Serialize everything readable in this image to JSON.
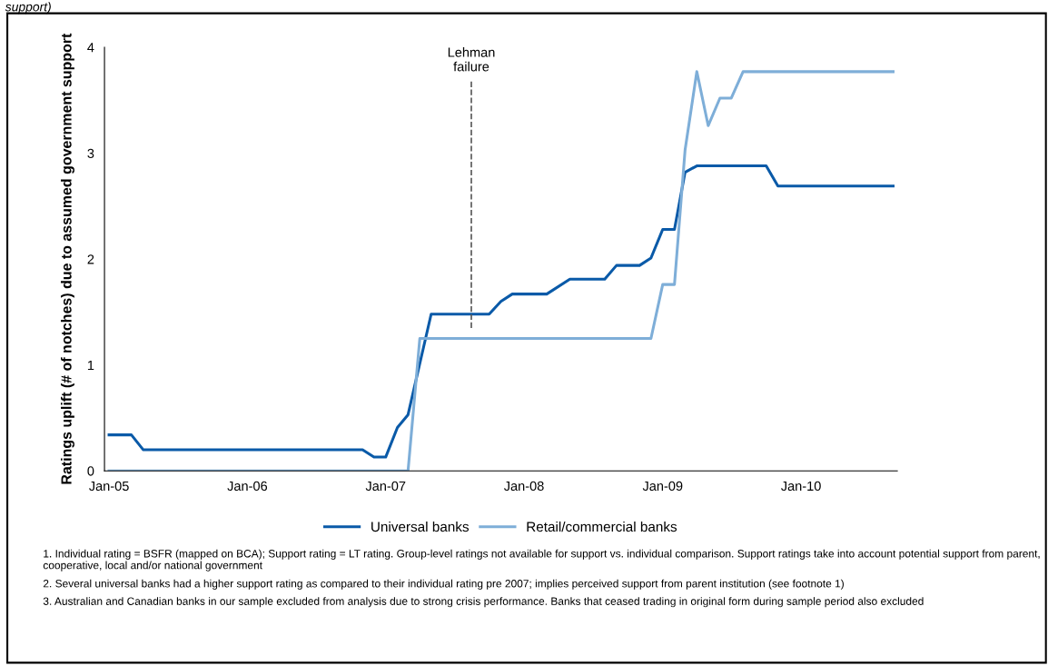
{
  "chart_data": {
    "type": "line",
    "title": "support)",
    "ylabel": "Ratings uplift (# of notches) due to assumed government support",
    "ylim": [
      0,
      4
    ],
    "yticks": [
      0,
      1,
      2,
      3,
      4
    ],
    "xlim": [
      "2004-12-20",
      "2010-09-12"
    ],
    "xticks": [
      {
        "value": "2005-01",
        "label": "Jan-05"
      },
      {
        "value": "2006-01",
        "label": "Jan-06"
      },
      {
        "value": "2007-01",
        "label": "Jan-07"
      },
      {
        "value": "2008-01",
        "label": "Jan-08"
      },
      {
        "value": "2009-01",
        "label": "Jan-09"
      },
      {
        "value": "2010-01",
        "label": "Jan-10"
      }
    ],
    "grid": false,
    "legend": "bottom",
    "marker": "none",
    "line_style": "solid",
    "ref_lines": [
      {
        "axis": "x",
        "value": "2007-08-15",
        "label": "Lehman\nfailure",
        "color": "#595959",
        "line_style": "dashed"
      }
    ],
    "series": [
      {
        "name": "Universal banks",
        "color": "#0a5aa8",
        "x": [
          "2005-01",
          "2005-03",
          "2005-04",
          "2006-11",
          "2006-12",
          "2007-01",
          "2007-02",
          "2007-03",
          "2007-05",
          "2007-10",
          "2007-11",
          "2007-12",
          "2008-03",
          "2008-05",
          "2008-08",
          "2008-09",
          "2008-11",
          "2008-12",
          "2009-01",
          "2009-02",
          "2009-03",
          "2009-04",
          "2009-10",
          "2009-11",
          "2010-09"
        ],
        "values": [
          0.34,
          0.34,
          0.2,
          0.2,
          0.13,
          0.13,
          0.41,
          0.53,
          1.48,
          1.48,
          1.6,
          1.67,
          1.67,
          1.81,
          1.81,
          1.94,
          1.94,
          2.01,
          2.28,
          2.28,
          2.82,
          2.88,
          2.88,
          2.69,
          2.69
        ]
      },
      {
        "name": "Retail/commercial banks",
        "color": "#7eaed8",
        "x": [
          "2005-01",
          "2007-03",
          "2007-04",
          "2008-12",
          "2009-01",
          "2009-02",
          "2009-03",
          "2009-04",
          "2009-05",
          "2009-06",
          "2009-07",
          "2009-08",
          "2010-09"
        ],
        "values": [
          0,
          0,
          1.25,
          1.25,
          1.76,
          1.76,
          3.03,
          3.77,
          3.26,
          3.52,
          3.52,
          3.77,
          3.77
        ]
      }
    ],
    "annotations": [
      "1. Individual rating = BSFR (mapped on BCA); Support rating = LT rating. Group-level ratings not available for support vs. individual comparison. Support ratings take into account potential support from parent, cooperative, local and/or national government",
      "2. Several universal banks had a higher support rating as compared to their individual rating pre 2007; implies perceived support from parent institution (see footnote 1)",
      "3. Australian and Canadian banks in our sample excluded from analysis due to strong crisis performance. Banks that ceased trading in original form during sample period also excluded"
    ]
  }
}
